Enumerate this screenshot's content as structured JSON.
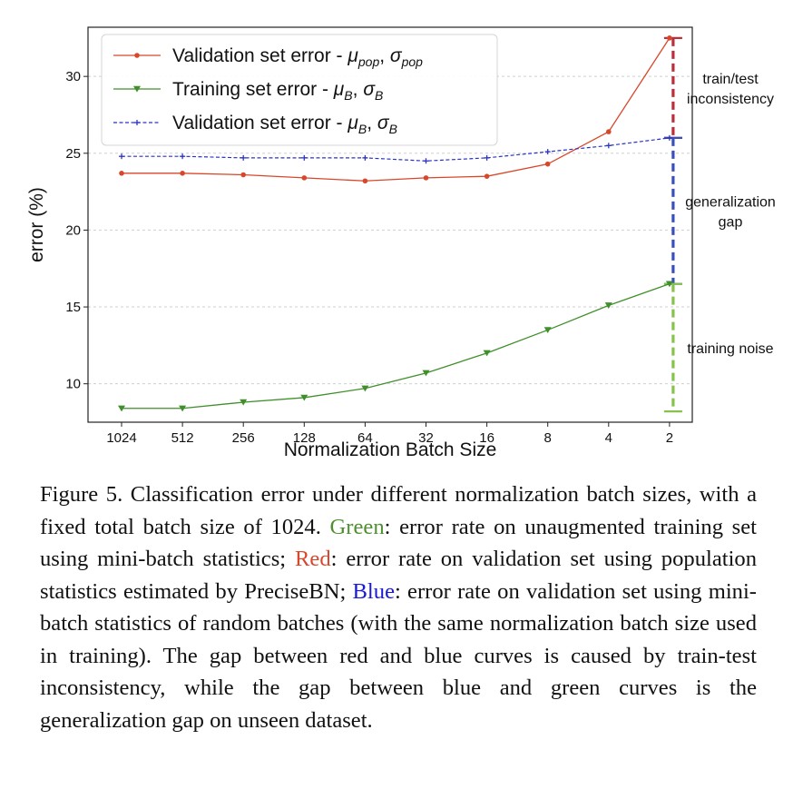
{
  "chart_data": {
    "type": "line",
    "xlabel": "Normalization Batch Size",
    "ylabel": "error (%)",
    "categories": [
      "1024",
      "512",
      "256",
      "128",
      "64",
      "32",
      "16",
      "8",
      "4",
      "2"
    ],
    "ylim": [
      7.5,
      33.2
    ],
    "yticks": [
      10,
      15,
      20,
      25,
      30
    ],
    "grid": true,
    "legend_position": "top-left",
    "series": [
      {
        "name": "Validation set error - μ_pop, σ_pop",
        "name_main": "Validation set error - ",
        "name_math": [
          [
            "μ",
            "pop"
          ],
          [
            "σ",
            "pop"
          ]
        ],
        "color": "#d9472b",
        "marker": "circle",
        "line": "solid",
        "values": [
          23.7,
          23.7,
          23.6,
          23.4,
          23.2,
          23.4,
          23.5,
          24.3,
          26.4,
          32.5
        ]
      },
      {
        "name": "Training set error - μ_B, σ_B",
        "name_main": "Training set error - ",
        "name_math": [
          [
            "μ",
            "B"
          ],
          [
            "σ",
            "B"
          ]
        ],
        "color": "#3f8f2a",
        "marker": "triangle-down",
        "line": "solid",
        "values": [
          8.4,
          8.4,
          8.8,
          9.1,
          9.7,
          10.7,
          12.0,
          13.5,
          15.1,
          16.5
        ]
      },
      {
        "name": "Validation set error - μ_B, σ_B",
        "name_main": "Validation set error - ",
        "name_math": [
          [
            "μ",
            "B"
          ],
          [
            "σ",
            "B"
          ]
        ],
        "color": "#2b35c4",
        "marker": "plus",
        "line": "dashed",
        "values": [
          24.8,
          24.8,
          24.7,
          24.7,
          24.7,
          24.5,
          24.7,
          25.1,
          25.5,
          26.0
        ]
      }
    ],
    "annotations": [
      {
        "label_lines": [
          "train/test",
          "inconsistency"
        ],
        "from": 26.0,
        "to": 32.5,
        "color": "#b8303c"
      },
      {
        "label_lines": [
          "generalization",
          "gap"
        ],
        "from": 16.5,
        "to": 26.0,
        "color": "#3a4fb8"
      },
      {
        "label_lines": [
          "training noise"
        ],
        "from": 8.2,
        "to": 16.5,
        "color": "#86c24e"
      }
    ]
  },
  "caption": {
    "figure_label": "Figure 5.",
    "part1": "  Classification error under different normalization batch sizes, with a fixed total batch size of 1024. ",
    "green_word": "Green",
    "part2": ": error rate on unaugmented training set using mini-batch statistics; ",
    "red_word": "Red",
    "part3": ": error rate on validation set using population statistics estimated by Pre­ciseBN; ",
    "blue_word": "Blue",
    "part4": ": error rate on validation set using mini-batch statis­tics of random batches (with the same normalization batch size used in training). The gap between red and blue curves is caused by train-test inconsistency, while the gap between blue and green curves is the generalization gap on unseen dataset."
  }
}
